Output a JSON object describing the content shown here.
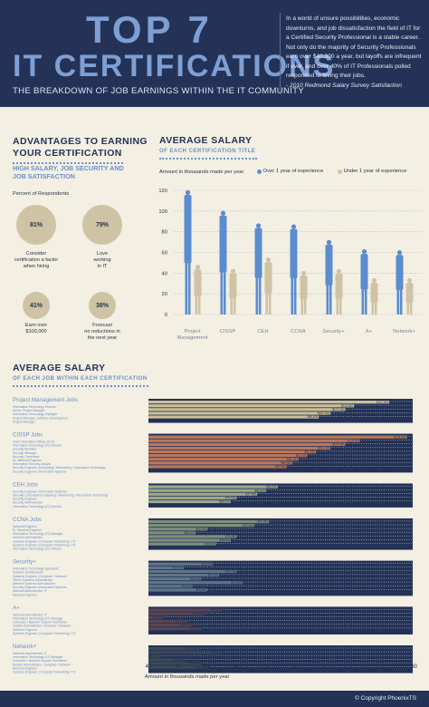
{
  "header": {
    "title_line1": "TOP 7",
    "title_line2": "IT CERTIFICATIONS",
    "subtitle": "THE BREAKDOWN OF JOB EARNINGS WITHIN THE IT COMMUNITY",
    "quote": "In a world of unsure possibilities, economic downturns, and job dissatisfaction the field of IT for a Certified Security Professional is a stable career. Not only do the majority of Security Professionals earn over $40,000 a year, but layoffs are infrequent if ever, and over 40% of IT Professionals polled responded to loving their jobs.",
    "quote_source": "- 2010 Redmond Salary Survey Satisfaction"
  },
  "advantages": {
    "title_line1": "ADVANTAGES TO EARNING",
    "title_line2": "YOUR CERTIFICATION",
    "subtitle_line1": "HIGH SALARY, JOB SECURITY AND",
    "subtitle_line2": "JOB SATISFACTION",
    "caption": "Percent of Respondents",
    "items": [
      {
        "pct": "81%",
        "label_lines": [
          "Consider",
          "certification a factor",
          "when hiring"
        ]
      },
      {
        "pct": "79%",
        "label_lines": [
          "Love",
          "working",
          "in IT"
        ]
      },
      {
        "pct": "41%",
        "label_lines": [
          "Earn over",
          "$100,000"
        ]
      },
      {
        "pct": "38%",
        "label_lines": [
          "Forecast",
          "no reductions in",
          "the next year"
        ]
      }
    ]
  },
  "avg_salary": {
    "title": "AVERAGE SALARY",
    "subtitle": "OF EACH CERTIFICATION TITLE",
    "unit_note": "Amount in thousands made per year",
    "legend": [
      {
        "label": "Over 1 year of experience",
        "color": "#5b8ccf"
      },
      {
        "label": "Under 1 year of experience",
        "color": "#cfc3a5"
      }
    ]
  },
  "avg_job": {
    "title": "AVERAGE SALARY",
    "subtitle": "OF EACH JOB WITHIN EACH CERTIFICATION",
    "xlabel": "Amount in thousands made per year"
  },
  "footer": {
    "copyright": "© Copyright PhoenixTS"
  },
  "chart_data": [
    {
      "type": "bar",
      "title": "AVERAGE SALARY",
      "subtitle": "OF EACH CERTIFICATION TITLE",
      "ylabel": "Amount in thousands made per year",
      "categories": [
        "Project Management",
        "CISSP",
        "CEH",
        "CCNA",
        "Security+",
        "A+",
        "Network+"
      ],
      "ylim": [
        0,
        120
      ],
      "yticks": [
        0,
        20,
        40,
        60,
        80,
        100,
        120
      ],
      "series": [
        {
          "name": "Over 1 year of experience",
          "color": "#5b8ccf",
          "values": [
            120,
            100,
            88,
            87,
            72,
            63,
            62
          ]
        },
        {
          "name": "Under 1 year of experience",
          "color": "#cfc3a5",
          "values": [
            48,
            44,
            55,
            42,
            44,
            35,
            35
          ]
        }
      ],
      "legend": "top"
    },
    {
      "type": "bar",
      "title": "AVERAGE SALARY",
      "subtitle": "OF EACH JOB WITHIN EACH CERTIFICATION",
      "xlabel": "Amount in thousands made per year",
      "xlim": [
        40,
        130
      ],
      "xticks": [
        40,
        50,
        60,
        70,
        80,
        90,
        100,
        110,
        120,
        130
      ],
      "groups": [
        {
          "name": "Project Management Jobs",
          "color": "#cbbf96",
          "jobs": [
            {
              "title": "Information Technology Director",
              "value": 122
            },
            {
              "title": "Senior Project Manager",
              "value": 110
            },
            {
              "title": "Information Technology Manager",
              "value": 107
            },
            {
              "title": "Project Manager, Software Development",
              "value": 102
            },
            {
              "title": "Project Manager",
              "value": 98
            }
          ]
        },
        {
          "name": "CISSP Jobs",
          "color": "#b9785c",
          "jobs": [
            {
              "title": "Chief Information Officer (CIO)",
              "value": 128
            },
            {
              "title": "Information Technology (IT) Director",
              "value": 112
            },
            {
              "title": "Security Architect",
              "value": 107
            },
            {
              "title": "Security Manager",
              "value": 102
            },
            {
              "title": "Security Consultant",
              "value": 97
            },
            {
              "title": "Sr. Network Engineer",
              "value": 94
            },
            {
              "title": "Information Security Analyst",
              "value": 91
            },
            {
              "title": "Security Engineer (Computing / Networking / Information Technology",
              "value": 89
            },
            {
              "title": "Security Engineer, Information Systems",
              "value": 87
            }
          ]
        },
        {
          "name": "CEH Jobs",
          "color": "#9ea78c",
          "jobs": [
            {
              "title": "Security Engineer, Information Systems",
              "value": 84
            },
            {
              "title": "Security Consultant (Computing / Networking / Information Technology",
              "value": 80
            },
            {
              "title": "Security Engineer",
              "value": 77
            },
            {
              "title": "Security Administrator",
              "value": 70
            },
            {
              "title": "Information Technology (IT) Director",
              "value": 68
            }
          ]
        },
        {
          "name": "CCNA Jobs",
          "color": "#7f8f7c",
          "jobs": [
            {
              "title": "Network Engineer",
              "value": 81
            },
            {
              "title": "Sr. Network Engineer",
              "value": 76
            },
            {
              "title": "Information Technology (IT) Manager",
              "value": 60
            },
            {
              "title": "Network Administrator",
              "value": 56
            },
            {
              "title": "Systems Engineer (Computer Networking / IT)",
              "value": 70
            },
            {
              "title": "Systems Engineer (Computer Networking / IT)",
              "value": 68
            },
            {
              "title": "Information Technology (IT) Director",
              "value": 63
            }
          ]
        },
        {
          "name": "Security+",
          "color": "#5f7588",
          "jobs": [
            {
              "title": "Information Technology Specialist",
              "value": 62
            },
            {
              "title": "Systems Administrator",
              "value": 52
            },
            {
              "title": "Systems Engineer (Computer / Network",
              "value": 70
            },
            {
              "title": "Senior Systems Administrator",
              "value": 64
            },
            {
              "title": "Network Systems Administrator",
              "value": 58
            },
            {
              "title": "Security Engineer, Information Systems",
              "value": 72
            },
            {
              "title": "Network Administrator, IT",
              "value": 55
            },
            {
              "title": "Network Engineer",
              "value": 60
            }
          ]
        },
        {
          "name": "A+",
          "color": "#5a4552",
          "jobs": [
            {
              "title": "Network Administrator, IT",
              "value": 65
            },
            {
              "title": "Information Technology (IT) Manager",
              "value": 59
            },
            {
              "title": "Computer / Network Support Technician",
              "value": 45
            },
            {
              "title": "System Administrator, Computer / Network",
              "value": 53
            },
            {
              "title": "Network Engineer",
              "value": 55
            },
            {
              "title": "Systems Engineer (Computer Networking / IT)",
              "value": 58
            }
          ]
        },
        {
          "name": "Network+",
          "color": "#3b4a57",
          "jobs": [
            {
              "title": "Network Administrator, IT",
              "value": 57
            },
            {
              "title": "Information Technology (IT) Manager",
              "value": 65
            },
            {
              "title": "Computer / Network Support Technician",
              "value": 44
            },
            {
              "title": "System Administrator, Computer / Network",
              "value": 52
            },
            {
              "title": "Network Engineer",
              "value": 58
            },
            {
              "title": "Systems Engineer (Computer Networking / IT)",
              "value": 60
            }
          ]
        }
      ]
    }
  ]
}
